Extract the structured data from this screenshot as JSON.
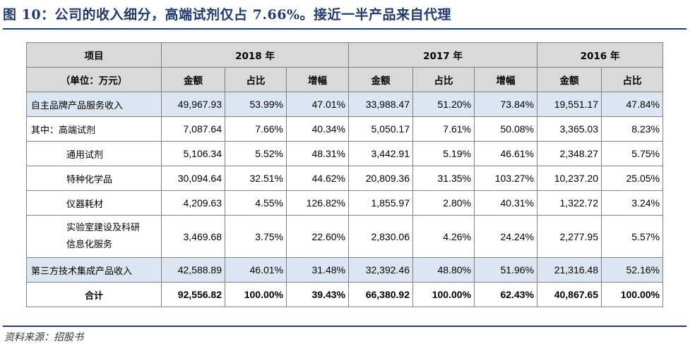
{
  "title": "图 10：公司的收入细分，高端试剂仅占 7.66%。接近一半产品来自代理",
  "header": {
    "item": "项目",
    "unit": "（单位：万元）",
    "years": [
      "2018 年",
      "2017 年",
      "2016 年"
    ],
    "amount": "金额",
    "share": "占比",
    "growth": "增幅"
  },
  "rows": [
    {
      "label": "自主品牌产品服务收入",
      "v": [
        "49,967.93",
        "53.99%",
        "47.01%",
        "33,988.47",
        "51.20%",
        "73.84%",
        "19,551.17",
        "47.84%"
      ]
    },
    {
      "label": "其中：高端试剂",
      "v": [
        "7,087.64",
        "7.66%",
        "40.34%",
        "5,050.17",
        "7.61%",
        "50.08%",
        "3,365.03",
        "8.23%"
      ]
    },
    {
      "label": "通用试剂",
      "v": [
        "5,106.34",
        "5.52%",
        "48.31%",
        "3,442.91",
        "5.19%",
        "46.61%",
        "2,348.27",
        "5.75%"
      ]
    },
    {
      "label": "特种化学品",
      "v": [
        "30,094.64",
        "32.51%",
        "44.62%",
        "20,809.36",
        "31.35%",
        "103.27%",
        "10,237.20",
        "25.05%"
      ]
    },
    {
      "label": "仪器耗材",
      "v": [
        "4,209.63",
        "4.55%",
        "126.82%",
        "1,855.97",
        "2.80%",
        "40.31%",
        "1,322.72",
        "3.24%"
      ]
    },
    {
      "label_line1": "实验室建设及科研",
      "label_line2": "信息化服务",
      "v": [
        "3,469.68",
        "3.75%",
        "22.60%",
        "2,830.06",
        "4.26%",
        "24.24%",
        "2,277.95",
        "5.57%"
      ]
    },
    {
      "label": "第三方技术集成产品收入",
      "v": [
        "42,588.89",
        "46.01%",
        "31.48%",
        "32,392.46",
        "48.80%",
        "51.96%",
        "21,316.48",
        "52.16%"
      ]
    },
    {
      "label": "合计",
      "v": [
        "92,556.82",
        "100.00%",
        "39.43%",
        "66,380.92",
        "100.00%",
        "62.43%",
        "40,867.65",
        "100.00%"
      ]
    }
  ],
  "source": "资料来源：招股书",
  "colors": {
    "title": "#1f3a73",
    "header_bg": "#d9d9d9",
    "shade_bg": "#dce6f2"
  }
}
